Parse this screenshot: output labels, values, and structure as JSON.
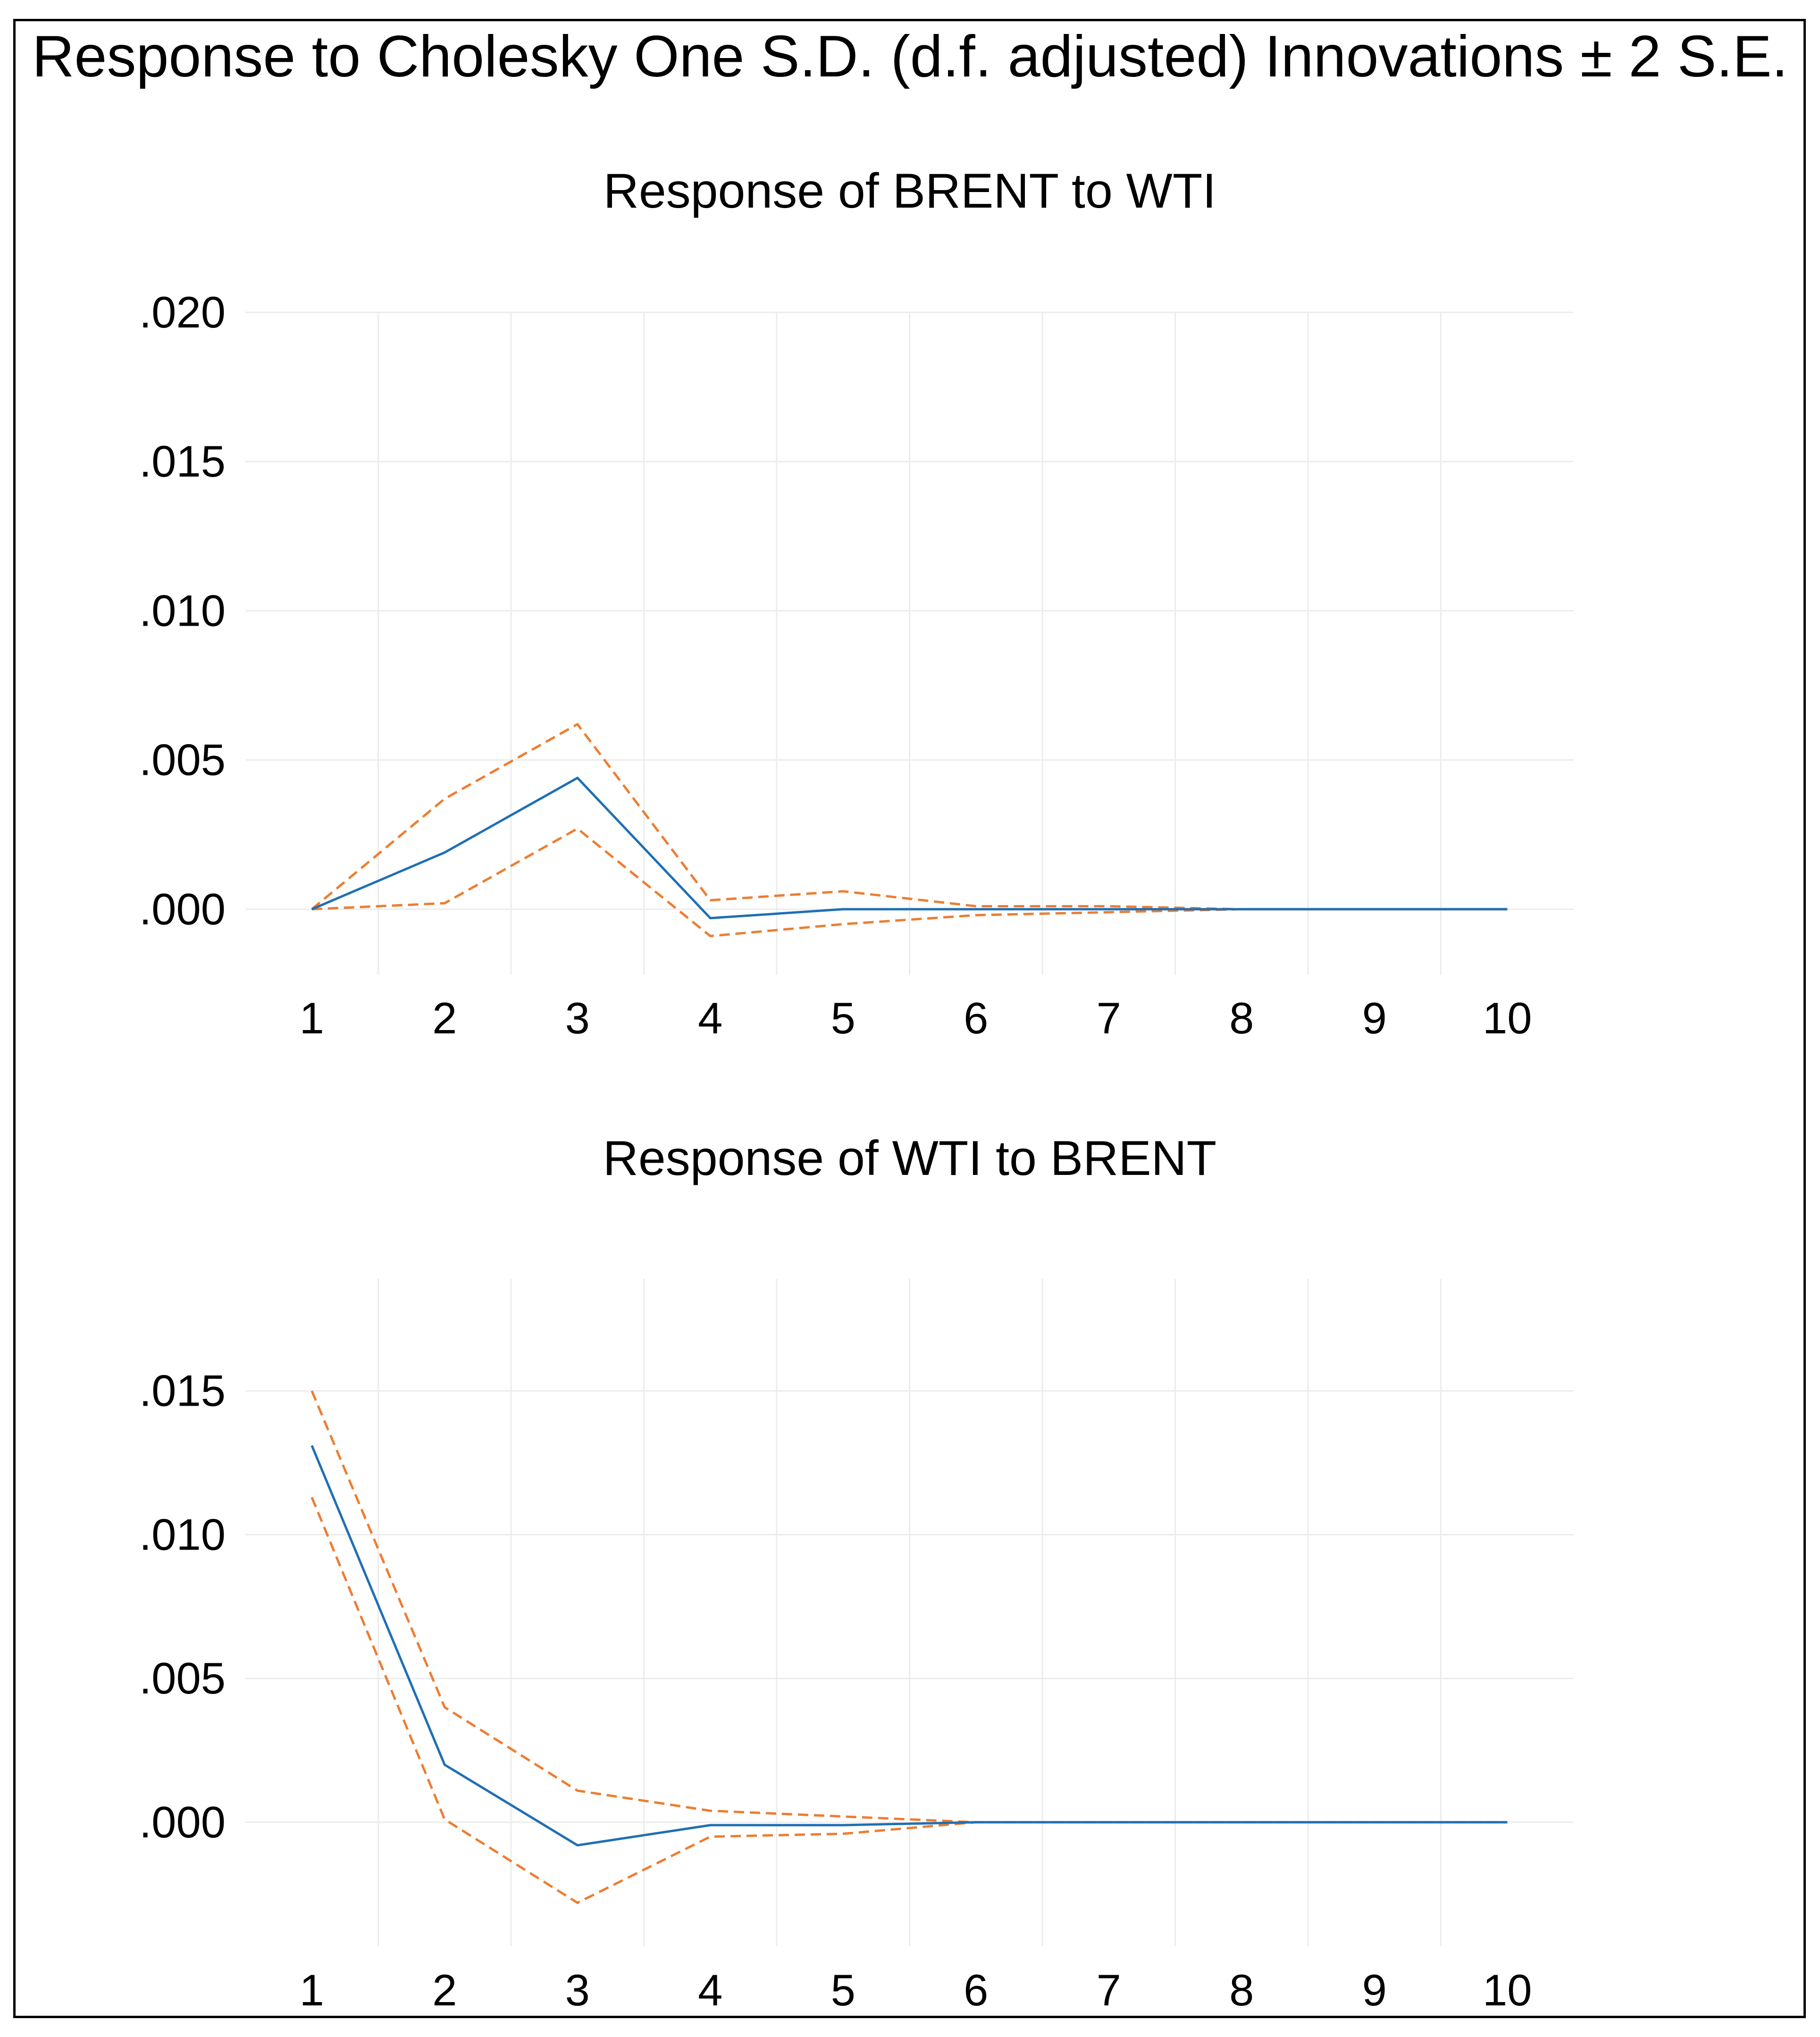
{
  "header": {
    "title": "Response to Cholesky One S.D. (d.f. adjusted) Innovations ± 2 S.E."
  },
  "colors": {
    "response": "#1f6fb4",
    "band": "#ed7d31",
    "grid": "#ececec"
  },
  "chart_data": [
    {
      "type": "line",
      "title": "Response of BRENT to WTI",
      "xlabel": "",
      "ylabel": "",
      "categories": [
        "1",
        "2",
        "3",
        "4",
        "5",
        "6",
        "7",
        "8",
        "9",
        "10"
      ],
      "ylim": [
        -0.0022,
        0.02
      ],
      "yticks": [
        0.0,
        0.005,
        0.01,
        0.015,
        0.02
      ],
      "ytick_labels": [
        ".000",
        ".005",
        ".010",
        ".015",
        ".020"
      ],
      "grid": true,
      "series": [
        {
          "role": "response",
          "style": "solid",
          "values": [
            0.0,
            0.0019,
            0.0044,
            -0.0003,
            0.0,
            0.0,
            0.0,
            0.0,
            0.0,
            0.0
          ]
        },
        {
          "role": "upper",
          "style": "dashed",
          "values": [
            0.0,
            0.0037,
            0.0062,
            0.0003,
            0.0006,
            0.0001,
            0.0001,
            0.0,
            0.0,
            0.0
          ]
        },
        {
          "role": "lower",
          "style": "dashed",
          "values": [
            0.0,
            0.0002,
            0.0027,
            -0.0009,
            -0.0005,
            -0.0002,
            -0.0001,
            0.0,
            0.0,
            0.0
          ]
        }
      ]
    },
    {
      "type": "line",
      "title": "Response of WTI to BRENT",
      "xlabel": "",
      "ylabel": "",
      "categories": [
        "1",
        "2",
        "3",
        "4",
        "5",
        "6",
        "7",
        "8",
        "9",
        "10"
      ],
      "ylim": [
        -0.0043,
        0.0189
      ],
      "yticks": [
        0.0,
        0.005,
        0.01,
        0.015
      ],
      "ytick_labels": [
        ".000",
        ".005",
        ".010",
        ".015"
      ],
      "grid": true,
      "series": [
        {
          "role": "response",
          "style": "solid",
          "values": [
            0.0131,
            0.002,
            -0.0008,
            -0.0001,
            -0.0001,
            0.0,
            0.0,
            0.0,
            0.0,
            0.0
          ]
        },
        {
          "role": "upper",
          "style": "dashed",
          "values": [
            0.015,
            0.004,
            0.0011,
            0.0004,
            0.0002,
            0.0,
            0.0,
            0.0,
            0.0,
            0.0
          ]
        },
        {
          "role": "lower",
          "style": "dashed",
          "values": [
            0.0113,
            0.0001,
            -0.0028,
            -0.0005,
            -0.0004,
            0.0,
            0.0,
            0.0,
            0.0,
            0.0
          ]
        }
      ]
    }
  ]
}
